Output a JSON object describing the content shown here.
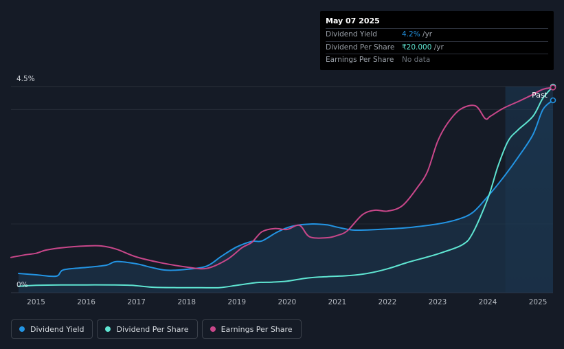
{
  "tooltip": {
    "date": "May 07 2025",
    "rows": [
      {
        "label": "Dividend Yield",
        "value": "4.2%",
        "unit": " /yr"
      },
      {
        "label": "Dividend Per Share",
        "value": "₹20.000",
        "unit": " /yr"
      },
      {
        "label": "Earnings Per Share",
        "value": "No data"
      }
    ]
  },
  "legend": [
    {
      "label": "Dividend Yield",
      "color": "#2394e3"
    },
    {
      "label": "Dividend Per Share",
      "color": "#5fe5d2"
    },
    {
      "label": "Earnings Per Share",
      "color": "#c9478a"
    }
  ],
  "chart_data": {
    "type": "line",
    "title": "",
    "xlabel": "",
    "ylabel": "",
    "y_top_label": "4.5%",
    "y_bottom_label": "0%",
    "past_label": "Past",
    "x_ticks": [
      "2015",
      "2016",
      "2017",
      "2018",
      "2019",
      "2020",
      "2021",
      "2022",
      "2023",
      "2024",
      "2025"
    ],
    "xlim": [
      2014.5,
      2025.3
    ],
    "ylim": [
      0,
      4.5
    ],
    "past_region_start": 2024.35,
    "series": [
      {
        "name": "Dividend Yield",
        "color": "#2394e3",
        "fill": true,
        "x": [
          2014.65,
          2015.0,
          2015.4,
          2015.55,
          2016.0,
          2016.4,
          2016.6,
          2017.0,
          2017.3,
          2017.6,
          2018.0,
          2018.4,
          2018.7,
          2019.0,
          2019.3,
          2019.5,
          2019.8,
          2020.1,
          2020.5,
          2020.8,
          2021.0,
          2021.3,
          2021.6,
          2022.0,
          2022.5,
          2023.0,
          2023.4,
          2023.7,
          2024.0,
          2024.3,
          2024.6,
          2024.9,
          2025.1,
          2025.3
        ],
        "y": [
          0.42,
          0.39,
          0.36,
          0.5,
          0.55,
          0.6,
          0.68,
          0.63,
          0.55,
          0.49,
          0.51,
          0.58,
          0.8,
          1.0,
          1.12,
          1.13,
          1.32,
          1.45,
          1.5,
          1.48,
          1.43,
          1.37,
          1.37,
          1.39,
          1.43,
          1.5,
          1.6,
          1.75,
          2.1,
          2.5,
          2.95,
          3.45,
          4.0,
          4.2
        ]
      },
      {
        "name": "Dividend Per Share",
        "color": "#5fe5d2",
        "x": [
          2014.65,
          2015.0,
          2015.5,
          2016.0,
          2016.5,
          2016.9,
          2017.3,
          2017.8,
          2018.3,
          2018.65,
          2019.0,
          2019.4,
          2019.7,
          2020.0,
          2020.4,
          2020.8,
          2021.2,
          2021.6,
          2022.0,
          2022.4,
          2022.8,
          2023.1,
          2023.5,
          2023.7,
          2024.0,
          2024.2,
          2024.4,
          2024.6,
          2024.9,
          2025.1,
          2025.3
        ],
        "y": [
          0.14,
          0.16,
          0.17,
          0.17,
          0.17,
          0.16,
          0.12,
          0.11,
          0.11,
          0.11,
          0.16,
          0.22,
          0.23,
          0.25,
          0.32,
          0.35,
          0.37,
          0.42,
          0.52,
          0.66,
          0.78,
          0.88,
          1.05,
          1.3,
          2.05,
          2.75,
          3.3,
          3.55,
          3.85,
          4.25,
          4.5
        ]
      },
      {
        "name": "Earnings Per Share",
        "color": "#c9478a",
        "x": [
          2014.5,
          2014.8,
          2015.0,
          2015.2,
          2015.5,
          2016.0,
          2016.3,
          2016.6,
          2017.0,
          2017.5,
          2018.0,
          2018.4,
          2018.8,
          2019.1,
          2019.3,
          2019.5,
          2019.75,
          2020.0,
          2020.25,
          2020.45,
          2020.8,
          2021.0,
          2021.2,
          2021.5,
          2021.75,
          2022.0,
          2022.3,
          2022.6,
          2022.8,
          2023.0,
          2023.2,
          2023.45,
          2023.75,
          2023.95,
          2024.05,
          2024.3,
          2024.6,
          2024.85,
          2025.1,
          2025.3
        ],
        "y": [
          0.77,
          0.83,
          0.86,
          0.93,
          0.98,
          1.02,
          1.02,
          0.95,
          0.78,
          0.65,
          0.56,
          0.53,
          0.72,
          0.98,
          1.1,
          1.33,
          1.4,
          1.38,
          1.47,
          1.22,
          1.2,
          1.25,
          1.35,
          1.7,
          1.8,
          1.78,
          1.9,
          2.3,
          2.65,
          3.3,
          3.7,
          4.0,
          4.08,
          3.8,
          3.85,
          4.02,
          4.17,
          4.3,
          4.44,
          4.48
        ]
      }
    ]
  }
}
